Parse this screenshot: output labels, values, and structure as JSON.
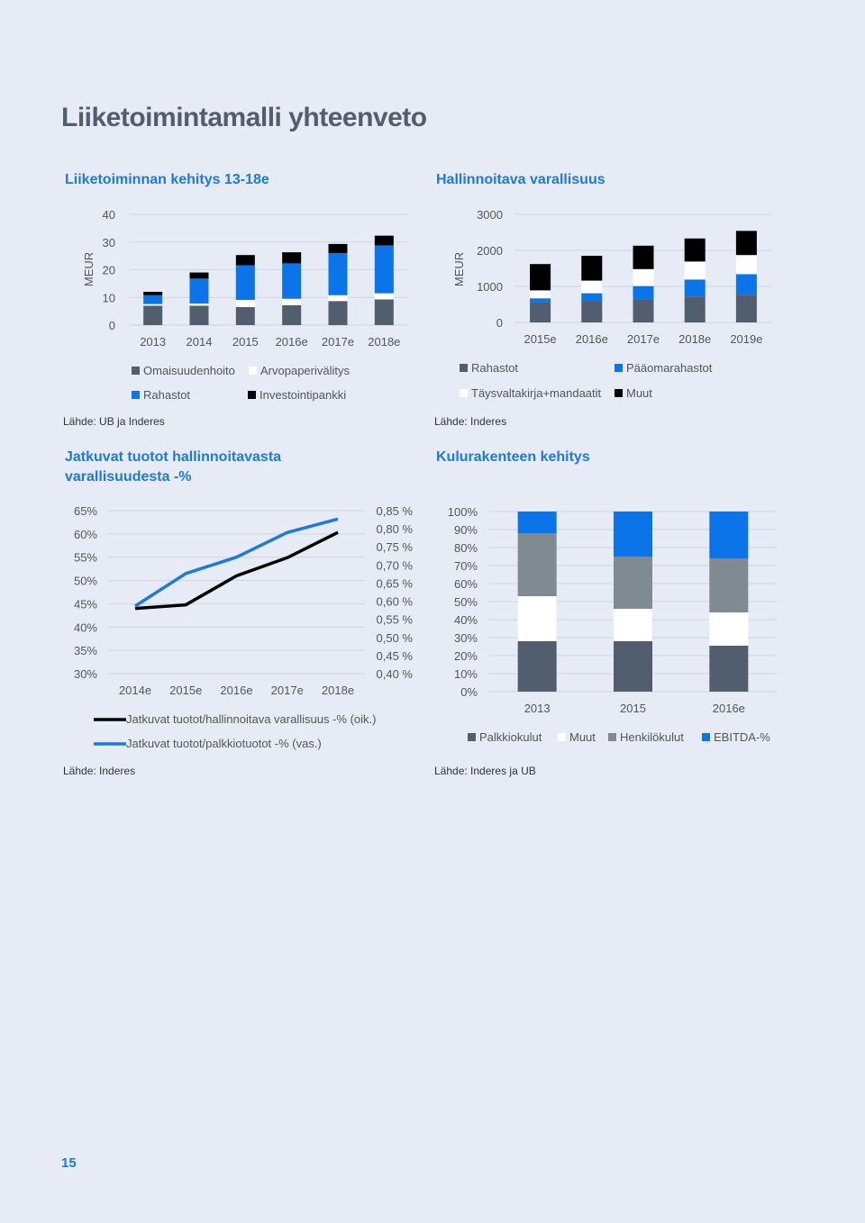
{
  "page": {
    "title": "Liiketoimintamalli yhteenveto",
    "page_number": "15",
    "colors": {
      "background": "#e6ebf5",
      "title": "#525d6d",
      "accent": "#1e79d8",
      "dark_gray": "#525d6d",
      "blue": "#0a74e8",
      "white": "#ffffff",
      "black": "#000000",
      "gray": "#7f8a92"
    }
  },
  "charts": [
    {
      "title": "Liiketoiminnan kehitys 13-18e",
      "source": "Lähde: UB ja Inderes"
    },
    {
      "title": "Hallinnoitava varallisuus",
      "source": "Lähde: Inderes"
    },
    {
      "title": "Jatkuvat tuotot hallinnoitavasta varallisuudesta -%",
      "title_lines": [
        "Jatkuvat tuotot hallinnoitavasta",
        "varallisuudesta -%"
      ],
      "source": "Lähde: Inderes"
    },
    {
      "title": "Kulurakenteen kehitys",
      "source": "Lähde: Inderes ja UB"
    }
  ],
  "chart_data": [
    {
      "type": "bar",
      "stacked": true,
      "ylabel": "MEUR",
      "ylim": [
        0,
        40
      ],
      "yticks": [
        "0",
        "10",
        "20",
        "30",
        "40"
      ],
      "categories": [
        "2013",
        "2014",
        "2015",
        "2016e",
        "2017e",
        "2018e"
      ],
      "series": [
        {
          "name": "Omaisuudenhoito",
          "color": "#525d6d",
          "values": [
            7,
            7,
            6.5,
            7.2,
            8.7,
            9.3
          ]
        },
        {
          "name": "Arvopaperivälitys",
          "color": "#ffffff",
          "values": [
            0.6,
            0.8,
            2.6,
            2.3,
            2.1,
            2.2
          ]
        },
        {
          "name": "Rahastot",
          "color": "#0a74e8",
          "values": [
            3.2,
            9,
            12.5,
            12.8,
            15.2,
            17.3
          ]
        },
        {
          "name": "Investointipankki",
          "color": "#000000",
          "values": [
            1.2,
            2.2,
            3.7,
            4,
            3.3,
            3.5
          ]
        }
      ],
      "legend_position": "bottom",
      "grid": true
    },
    {
      "type": "bar",
      "stacked": true,
      "ylabel": "MEUR",
      "ylim": [
        0,
        3000
      ],
      "yticks": [
        "0",
        "1000",
        "2000",
        "3000"
      ],
      "categories": [
        "2015e",
        "2016e",
        "2017e",
        "2018e",
        "2019e"
      ],
      "series": [
        {
          "name": "Rahastot",
          "color": "#525d6d",
          "values": [
            560,
            600,
            640,
            720,
            770
          ]
        },
        {
          "name": "Pääomarahastot",
          "color": "#0a74e8",
          "values": [
            110,
            210,
            370,
            470,
            570
          ]
        },
        {
          "name": "Täysvaltakirja+mandaatit",
          "color": "#ffffff",
          "values": [
            220,
            350,
            470,
            500,
            530
          ]
        },
        {
          "name": "Muut",
          "color": "#000000",
          "values": [
            730,
            690,
            650,
            640,
            670
          ]
        }
      ],
      "legend_position": "bottom",
      "grid": true
    },
    {
      "type": "line",
      "categories": [
        "2014e",
        "2015e",
        "2016e",
        "2017e",
        "2018e"
      ],
      "y_left": {
        "ylim": [
          30,
          65
        ],
        "ticks": [
          "30%",
          "35%",
          "40%",
          "45%",
          "50%",
          "55%",
          "60%",
          "65%"
        ]
      },
      "y_right": {
        "ylim": [
          0.4,
          0.85
        ],
        "ticks": [
          "0,40 %",
          "0,45 %",
          "0,50 %",
          "0,55 %",
          "0,60 %",
          "0,65 %",
          "0,70 %",
          "0,75 %",
          "0,80 %",
          "0,85 %"
        ]
      },
      "series": [
        {
          "name": "Jatkuvat tuotot/hallinnoitava varallisuus -% (oik.)",
          "axis": "right",
          "color": "#000000",
          "values": [
            0.58,
            0.59,
            0.67,
            0.72,
            0.79
          ]
        },
        {
          "name": "Jatkuvat tuotot/palkkiotuotot -% (vas.)",
          "axis": "left",
          "color": "#1e79d8",
          "values": [
            44.5,
            51.5,
            55,
            60.3,
            63.2
          ]
        }
      ],
      "legend_position": "bottom",
      "grid": true
    },
    {
      "type": "bar",
      "stacked": true,
      "ylim": [
        0,
        100
      ],
      "yticks": [
        "0%",
        "10%",
        "20%",
        "30%",
        "40%",
        "50%",
        "60%",
        "70%",
        "80%",
        "90%",
        "100%"
      ],
      "categories": [
        "2013",
        "2015",
        "2016e"
      ],
      "series": [
        {
          "name": "Palkkiokulut",
          "color": "#525d6d",
          "values": [
            28,
            28,
            25.5
          ]
        },
        {
          "name": "Muut",
          "color": "#ffffff",
          "values": [
            25,
            18,
            18.5
          ]
        },
        {
          "name": "Henkilökulut",
          "color": "#7f8a92",
          "values": [
            35,
            29,
            30
          ]
        },
        {
          "name": "EBITDA-%",
          "color": "#0a74e8",
          "values": [
            12,
            25,
            26
          ]
        }
      ],
      "legend_position": "bottom",
      "grid": true
    }
  ]
}
